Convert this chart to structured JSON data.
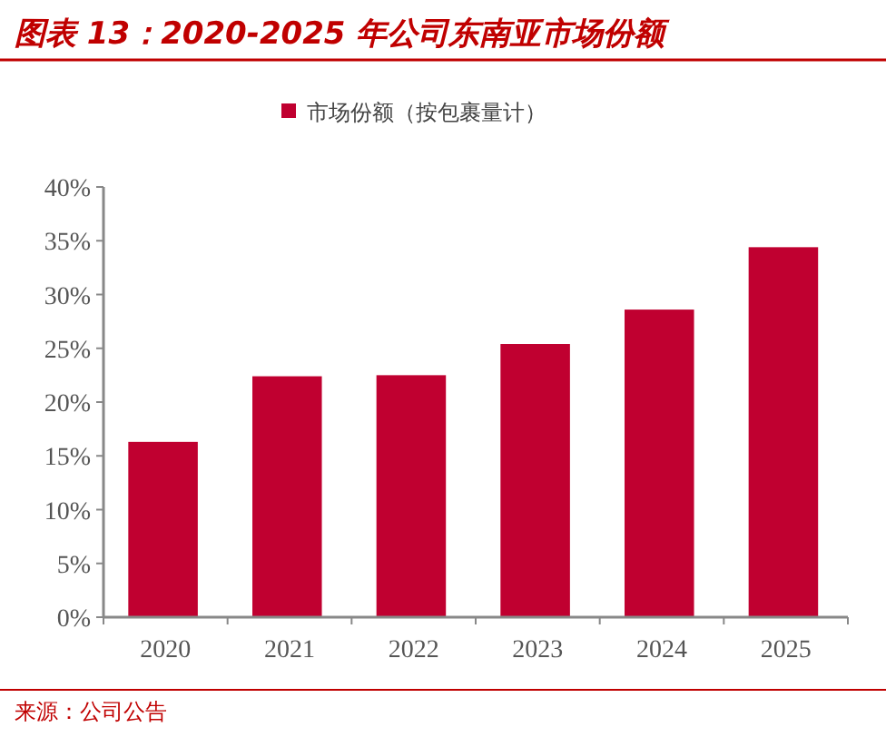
{
  "chart_data": {
    "type": "bar",
    "title": "图表 13：2020-2025 年公司东南亚市场份额",
    "categories": [
      "2020",
      "2021",
      "2022",
      "2023",
      "2024",
      "2025"
    ],
    "series": [
      {
        "name": "市场份额（按包裹量计）",
        "color": "#c00030",
        "values": [
          16.3,
          22.4,
          22.5,
          25.4,
          28.6,
          34.4
        ]
      }
    ],
    "ylim": [
      0,
      40
    ],
    "yticks": [
      {
        "value": 0,
        "label": "0%"
      },
      {
        "value": 5,
        "label": "5%"
      },
      {
        "value": 10,
        "label": "10%"
      },
      {
        "value": 15,
        "label": "15%"
      },
      {
        "value": 20,
        "label": "20%"
      },
      {
        "value": 25,
        "label": "25%"
      },
      {
        "value": 30,
        "label": "30%"
      },
      {
        "value": 35,
        "label": "35%"
      },
      {
        "value": 40,
        "label": "40%"
      }
    ],
    "legend": "top",
    "grid": false,
    "annotations": [
      "来源：公司公告"
    ]
  }
}
